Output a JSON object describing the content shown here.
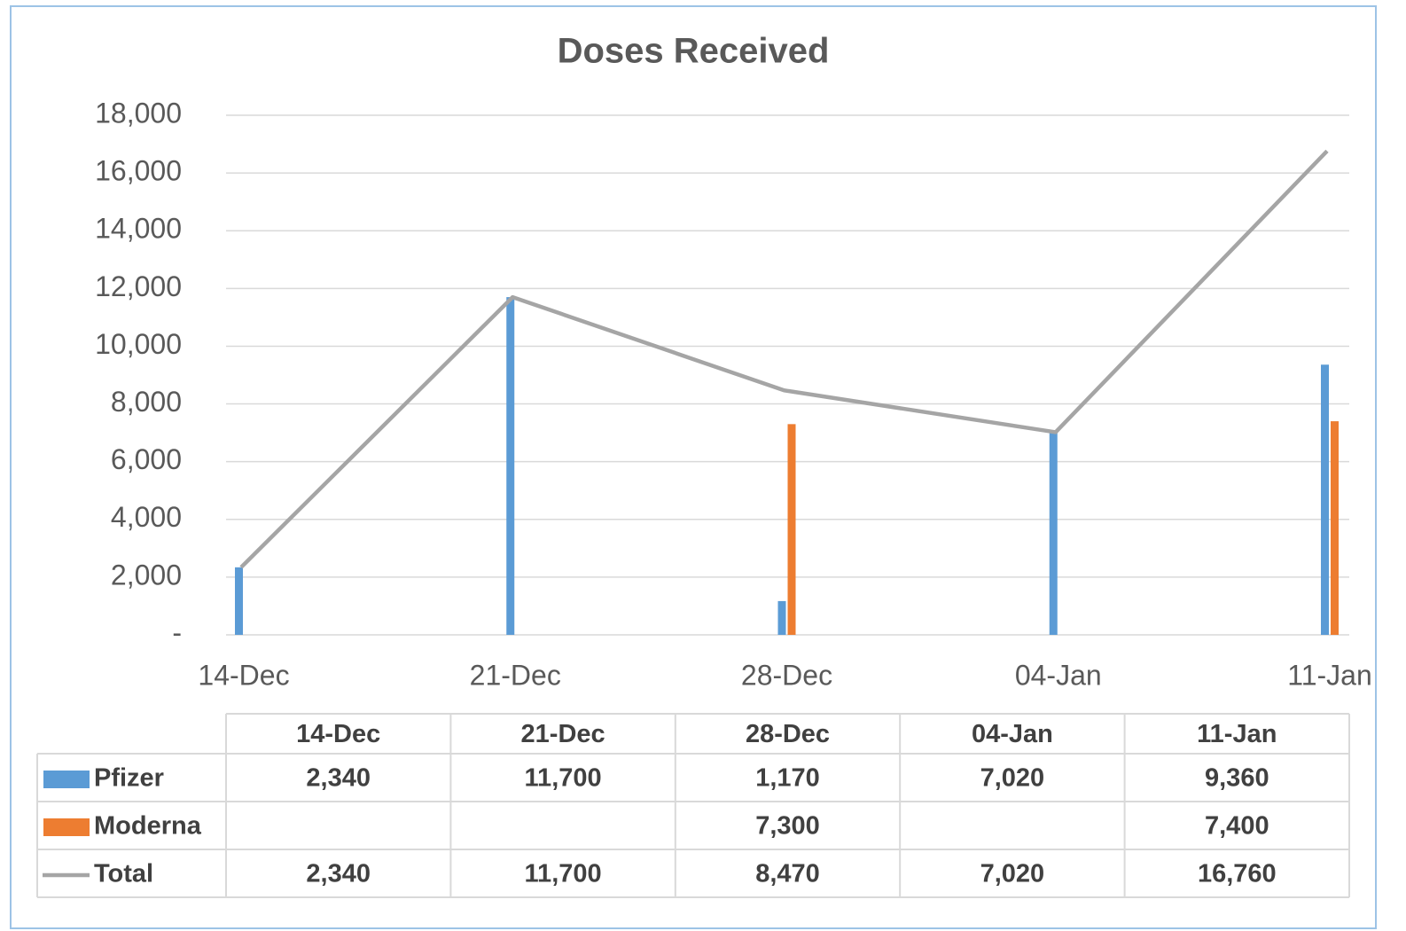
{
  "chart_data": {
    "type": "bar",
    "title": "Doses Received",
    "categories": [
      "14-Dec",
      "21-Dec",
      "28-Dec",
      "04-Jan",
      "11-Jan"
    ],
    "series": [
      {
        "name": "Pfizer",
        "type": "bar",
        "color": "#5b9bd5",
        "values": [
          2340,
          11700,
          1170,
          7020,
          9360
        ],
        "value_labels": [
          "2,340",
          "11,700",
          "1,170",
          "7,020",
          "9,360"
        ]
      },
      {
        "name": "Moderna",
        "type": "bar",
        "color": "#ed7d31",
        "values": [
          null,
          null,
          7300,
          null,
          7400
        ],
        "value_labels": [
          null,
          null,
          "7,300",
          null,
          "7,400"
        ]
      },
      {
        "name": "Total",
        "type": "line",
        "color": "#a5a5a5",
        "values": [
          2340,
          11700,
          8470,
          7020,
          16760
        ],
        "value_labels": [
          "2,340",
          "11,700",
          "8,470",
          "7,020",
          "16,760"
        ]
      }
    ],
    "ylim": [
      0,
      18000
    ],
    "yticks": [
      {
        "value": 0,
        "label": "-"
      },
      {
        "value": 2000,
        "label": "2,000"
      },
      {
        "value": 4000,
        "label": "4,000"
      },
      {
        "value": 6000,
        "label": "6,000"
      },
      {
        "value": 8000,
        "label": "8,000"
      },
      {
        "value": 10000,
        "label": "10,000"
      },
      {
        "value": 12000,
        "label": "12,000"
      },
      {
        "value": 14000,
        "label": "14,000"
      },
      {
        "value": 16000,
        "label": "16,000"
      },
      {
        "value": 18000,
        "label": "18,000"
      }
    ],
    "grid": true
  }
}
